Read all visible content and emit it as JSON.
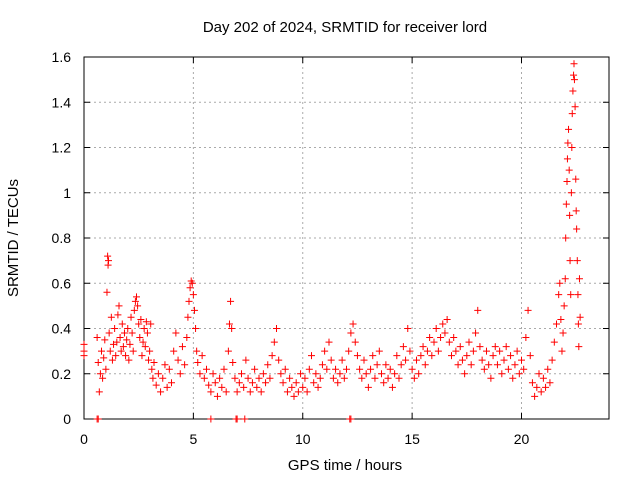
{
  "chart_data": {
    "type": "scatter",
    "title": "Day 202 of 2024, SRMTID for receiver lord",
    "xlabel": "GPS time / hours",
    "ylabel": "SRMTID / TECUs",
    "xlim": [
      0,
      24
    ],
    "ylim": [
      0,
      1.6
    ],
    "xticks": [
      0,
      5,
      10,
      15,
      20
    ],
    "xtick_labels": [
      "0",
      "5",
      "10",
      "15",
      "20"
    ],
    "yticks": [
      0,
      0.2,
      0.4,
      0.6,
      0.8,
      1,
      1.2,
      1.4,
      1.6
    ],
    "ytick_labels": [
      "0",
      "0.2",
      "0.4",
      "0.6",
      "0.8",
      "1",
      "1.2",
      "1.4",
      "1.6"
    ],
    "grid": true,
    "marker": "+",
    "color": "#ff0000",
    "series": [
      {
        "name": "SRMTID",
        "points": [
          [
            0.0,
            0.33
          ],
          [
            0.0,
            0.3
          ],
          [
            0.0,
            0.28
          ],
          [
            0.6,
            0.36
          ],
          [
            0.65,
            0.25
          ],
          [
            0.7,
            0.12
          ],
          [
            0.75,
            0.2
          ],
          [
            0.8,
            0.3
          ],
          [
            0.85,
            0.18
          ],
          [
            0.9,
            0.27
          ],
          [
            0.95,
            0.35
          ],
          [
            1.0,
            0.22
          ],
          [
            1.05,
            0.56
          ],
          [
            1.08,
            0.72
          ],
          [
            1.1,
            0.68
          ],
          [
            1.12,
            0.7
          ],
          [
            1.15,
            0.38
          ],
          [
            1.2,
            0.3
          ],
          [
            1.25,
            0.45
          ],
          [
            1.3,
            0.26
          ],
          [
            1.35,
            0.33
          ],
          [
            1.4,
            0.4
          ],
          [
            1.45,
            0.28
          ],
          [
            1.5,
            0.34
          ],
          [
            1.55,
            0.46
          ],
          [
            1.6,
            0.5
          ],
          [
            1.65,
            0.36
          ],
          [
            1.7,
            0.3
          ],
          [
            1.75,
            0.42
          ],
          [
            1.8,
            0.32
          ],
          [
            1.85,
            0.38
          ],
          [
            1.9,
            0.28
          ],
          [
            1.95,
            0.35
          ],
          [
            2.0,
            0.4
          ],
          [
            2.05,
            0.26
          ],
          [
            2.1,
            0.33
          ],
          [
            2.15,
            0.45
          ],
          [
            2.2,
            0.38
          ],
          [
            2.25,
            0.3
          ],
          [
            2.3,
            0.48
          ],
          [
            2.35,
            0.52
          ],
          [
            2.4,
            0.54
          ],
          [
            2.45,
            0.5
          ],
          [
            2.5,
            0.42
          ],
          [
            2.55,
            0.36
          ],
          [
            2.6,
            0.44
          ],
          [
            2.65,
            0.28
          ],
          [
            2.7,
            0.34
          ],
          [
            2.75,
            0.4
          ],
          [
            2.8,
            0.32
          ],
          [
            2.85,
            0.43
          ],
          [
            2.9,
            0.38
          ],
          [
            2.95,
            0.26
          ],
          [
            3.0,
            0.3
          ],
          [
            3.05,
            0.42
          ],
          [
            3.1,
            0.22
          ],
          [
            3.15,
            0.18
          ],
          [
            3.2,
            0.25
          ],
          [
            3.3,
            0.15
          ],
          [
            3.4,
            0.2
          ],
          [
            3.5,
            0.12
          ],
          [
            3.6,
            0.18
          ],
          [
            3.7,
            0.24
          ],
          [
            3.8,
            0.14
          ],
          [
            3.9,
            0.22
          ],
          [
            4.0,
            0.16
          ],
          [
            4.1,
            0.3
          ],
          [
            4.2,
            0.38
          ],
          [
            4.3,
            0.26
          ],
          [
            4.4,
            0.2
          ],
          [
            4.5,
            0.32
          ],
          [
            4.6,
            0.24
          ],
          [
            4.7,
            0.36
          ],
          [
            4.75,
            0.45
          ],
          [
            4.8,
            0.52
          ],
          [
            4.85,
            0.58
          ],
          [
            4.9,
            0.61
          ],
          [
            4.95,
            0.6
          ],
          [
            5.0,
            0.55
          ],
          [
            5.05,
            0.48
          ],
          [
            5.1,
            0.4
          ],
          [
            5.15,
            0.3
          ],
          [
            5.2,
            0.25
          ],
          [
            5.3,
            0.2
          ],
          [
            5.4,
            0.28
          ],
          [
            5.5,
            0.18
          ],
          [
            5.6,
            0.22
          ],
          [
            5.7,
            0.15
          ],
          [
            5.8,
            0.12
          ],
          [
            5.9,
            0.2
          ],
          [
            6.0,
            0.16
          ],
          [
            6.1,
            0.1
          ],
          [
            6.2,
            0.18
          ],
          [
            6.3,
            0.14
          ],
          [
            6.4,
            0.22
          ],
          [
            6.5,
            0.12
          ],
          [
            6.6,
            0.3
          ],
          [
            6.65,
            0.42
          ],
          [
            6.7,
            0.52
          ],
          [
            6.75,
            0.4
          ],
          [
            6.8,
            0.25
          ],
          [
            6.9,
            0.18
          ],
          [
            7.0,
            0.12
          ],
          [
            7.1,
            0.16
          ],
          [
            7.2,
            0.2
          ],
          [
            7.3,
            0.14
          ],
          [
            7.4,
            0.26
          ],
          [
            7.5,
            0.18
          ],
          [
            7.6,
            0.12
          ],
          [
            7.7,
            0.16
          ],
          [
            7.8,
            0.22
          ],
          [
            7.9,
            0.14
          ],
          [
            8.0,
            0.18
          ],
          [
            8.1,
            0.12
          ],
          [
            8.2,
            0.2
          ],
          [
            8.3,
            0.16
          ],
          [
            8.4,
            0.24
          ],
          [
            8.5,
            0.18
          ],
          [
            8.6,
            0.28
          ],
          [
            8.7,
            0.34
          ],
          [
            8.8,
            0.4
          ],
          [
            8.9,
            0.26
          ],
          [
            9.0,
            0.2
          ],
          [
            9.1,
            0.16
          ],
          [
            9.2,
            0.22
          ],
          [
            9.3,
            0.12
          ],
          [
            9.4,
            0.18
          ],
          [
            9.5,
            0.14
          ],
          [
            9.6,
            0.1
          ],
          [
            9.7,
            0.16
          ],
          [
            9.8,
            0.12
          ],
          [
            9.9,
            0.2
          ],
          [
            10.0,
            0.14
          ],
          [
            10.1,
            0.18
          ],
          [
            10.2,
            0.12
          ],
          [
            10.3,
            0.22
          ],
          [
            10.4,
            0.28
          ],
          [
            10.5,
            0.16
          ],
          [
            10.6,
            0.2
          ],
          [
            10.7,
            0.14
          ],
          [
            10.8,
            0.18
          ],
          [
            10.9,
            0.24
          ],
          [
            11.0,
            0.3
          ],
          [
            11.1,
            0.22
          ],
          [
            11.2,
            0.34
          ],
          [
            11.3,
            0.26
          ],
          [
            11.4,
            0.18
          ],
          [
            11.5,
            0.22
          ],
          [
            11.6,
            0.16
          ],
          [
            11.7,
            0.2
          ],
          [
            11.8,
            0.26
          ],
          [
            11.9,
            0.18
          ],
          [
            12.0,
            0.22
          ],
          [
            12.1,
            0.3
          ],
          [
            12.2,
            0.38
          ],
          [
            12.3,
            0.42
          ],
          [
            12.4,
            0.34
          ],
          [
            12.5,
            0.28
          ],
          [
            12.6,
            0.22
          ],
          [
            12.7,
            0.18
          ],
          [
            12.8,
            0.26
          ],
          [
            12.9,
            0.2
          ],
          [
            13.0,
            0.14
          ],
          [
            13.1,
            0.22
          ],
          [
            13.2,
            0.28
          ],
          [
            13.3,
            0.18
          ],
          [
            13.4,
            0.24
          ],
          [
            13.5,
            0.3
          ],
          [
            13.6,
            0.2
          ],
          [
            13.7,
            0.16
          ],
          [
            13.8,
            0.24
          ],
          [
            13.9,
            0.18
          ],
          [
            14.0,
            0.22
          ],
          [
            14.1,
            0.14
          ],
          [
            14.2,
            0.2
          ],
          [
            14.3,
            0.28
          ],
          [
            14.4,
            0.18
          ],
          [
            14.5,
            0.24
          ],
          [
            14.6,
            0.32
          ],
          [
            14.7,
            0.26
          ],
          [
            14.8,
            0.4
          ],
          [
            14.9,
            0.3
          ],
          [
            15.0,
            0.22
          ],
          [
            15.1,
            0.18
          ],
          [
            15.2,
            0.26
          ],
          [
            15.3,
            0.2
          ],
          [
            15.4,
            0.28
          ],
          [
            15.5,
            0.32
          ],
          [
            15.6,
            0.24
          ],
          [
            15.7,
            0.3
          ],
          [
            15.8,
            0.36
          ],
          [
            15.9,
            0.28
          ],
          [
            16.0,
            0.34
          ],
          [
            16.1,
            0.4
          ],
          [
            16.2,
            0.3
          ],
          [
            16.3,
            0.36
          ],
          [
            16.4,
            0.42
          ],
          [
            16.5,
            0.38
          ],
          [
            16.6,
            0.44
          ],
          [
            16.7,
            0.34
          ],
          [
            16.8,
            0.28
          ],
          [
            16.9,
            0.36
          ],
          [
            17.0,
            0.3
          ],
          [
            17.1,
            0.24
          ],
          [
            17.2,
            0.32
          ],
          [
            17.3,
            0.26
          ],
          [
            17.4,
            0.2
          ],
          [
            17.5,
            0.28
          ],
          [
            17.6,
            0.34
          ],
          [
            17.7,
            0.24
          ],
          [
            17.8,
            0.3
          ],
          [
            17.9,
            0.38
          ],
          [
            18.0,
            0.48
          ],
          [
            18.1,
            0.32
          ],
          [
            18.2,
            0.26
          ],
          [
            18.3,
            0.22
          ],
          [
            18.4,
            0.3
          ],
          [
            18.5,
            0.24
          ],
          [
            18.6,
            0.18
          ],
          [
            18.7,
            0.28
          ],
          [
            18.8,
            0.32
          ],
          [
            18.9,
            0.24
          ],
          [
            19.0,
            0.3
          ],
          [
            19.1,
            0.2
          ],
          [
            19.2,
            0.26
          ],
          [
            19.3,
            0.32
          ],
          [
            19.4,
            0.22
          ],
          [
            19.5,
            0.28
          ],
          [
            19.6,
            0.18
          ],
          [
            19.7,
            0.24
          ],
          [
            19.8,
            0.3
          ],
          [
            19.9,
            0.2
          ],
          [
            20.0,
            0.26
          ],
          [
            20.1,
            0.22
          ],
          [
            20.2,
            0.36
          ],
          [
            20.3,
            0.48
          ],
          [
            20.4,
            0.28
          ],
          [
            20.5,
            0.16
          ],
          [
            20.6,
            0.1
          ],
          [
            20.7,
            0.14
          ],
          [
            20.8,
            0.2
          ],
          [
            20.9,
            0.12
          ],
          [
            21.0,
            0.18
          ],
          [
            21.1,
            0.14
          ],
          [
            21.2,
            0.22
          ],
          [
            21.3,
            0.16
          ],
          [
            21.4,
            0.26
          ],
          [
            21.5,
            0.34
          ],
          [
            21.6,
            0.42
          ],
          [
            21.7,
            0.55
          ],
          [
            21.75,
            0.6
          ],
          [
            21.8,
            0.44
          ],
          [
            21.85,
            0.3
          ],
          [
            21.9,
            0.38
          ],
          [
            21.95,
            0.5
          ],
          [
            22.0,
            0.62
          ],
          [
            22.02,
            0.8
          ],
          [
            22.05,
            0.95
          ],
          [
            22.08,
            1.05
          ],
          [
            22.1,
            1.15
          ],
          [
            22.12,
            1.22
          ],
          [
            22.15,
            1.28
          ],
          [
            22.18,
            1.1
          ],
          [
            22.2,
            0.9
          ],
          [
            22.22,
            0.7
          ],
          [
            22.25,
            0.55
          ],
          [
            22.28,
            1.0
          ],
          [
            22.3,
            1.2
          ],
          [
            22.32,
            1.35
          ],
          [
            22.35,
            1.45
          ],
          [
            22.38,
            1.52
          ],
          [
            22.4,
            1.57
          ],
          [
            22.42,
            1.5
          ],
          [
            22.45,
            1.38
          ],
          [
            22.48,
            1.06
          ],
          [
            22.5,
            0.92
          ],
          [
            22.52,
            0.84
          ],
          [
            22.55,
            0.7
          ],
          [
            22.58,
            0.55
          ],
          [
            22.6,
            0.42
          ],
          [
            22.62,
            0.32
          ],
          [
            22.65,
            0.62
          ],
          [
            22.68,
            0.45
          ]
        ],
        "baseline_points": [
          [
            0.6,
            0.0
          ],
          [
            0.65,
            0.0
          ],
          [
            5.8,
            0.0
          ],
          [
            6.95,
            0.0
          ],
          [
            7.0,
            0.0
          ],
          [
            7.35,
            0.0
          ],
          [
            12.15,
            0.0
          ],
          [
            12.2,
            0.0
          ]
        ]
      }
    ]
  }
}
